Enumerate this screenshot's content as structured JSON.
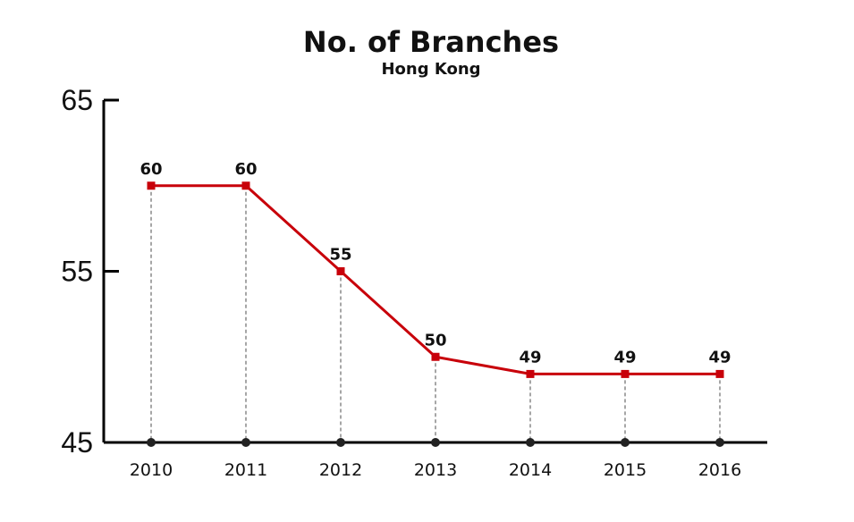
{
  "chart_data": {
    "type": "line",
    "title": "No. of Branches",
    "subtitle": "Hong Kong",
    "xlabel": "",
    "ylabel": "",
    "categories": [
      "2010",
      "2011",
      "2012",
      "2013",
      "2014",
      "2015",
      "2016"
    ],
    "series": [
      {
        "values": [
          60,
          60,
          55,
          50,
          49,
          49,
          49
        ],
        "color": "#c8000a"
      }
    ],
    "data_labels": [
      "60",
      "60",
      "55",
      "50",
      "49",
      "49",
      "49"
    ],
    "ylim": [
      45,
      65
    ],
    "yticks": [
      45,
      55,
      65
    ],
    "ytick_labels": [
      "45",
      "55",
      "65"
    ],
    "grid": false,
    "drop_lines": true,
    "baseline_markers": true,
    "colors": {
      "series": "#c8000a",
      "axis": "#000000",
      "drop_line": "#888888",
      "baseline_marker": "#222222"
    }
  }
}
